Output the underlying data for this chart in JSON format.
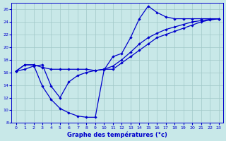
{
  "xlabel": "Graphe des températures (°c)",
  "xlim": [
    -0.5,
    23.5
  ],
  "ylim": [
    8,
    27
  ],
  "xticks": [
    0,
    1,
    2,
    3,
    4,
    5,
    6,
    7,
    8,
    9,
    10,
    11,
    12,
    13,
    14,
    15,
    16,
    17,
    18,
    19,
    20,
    21,
    22,
    23
  ],
  "yticks": [
    8,
    10,
    12,
    14,
    16,
    18,
    20,
    22,
    24,
    26
  ],
  "bg_color": "#c8e8e8",
  "line_color": "#0000cc",
  "grid_color": "#a0c8c8",
  "line1_x": [
    0,
    1,
    2,
    3,
    4,
    5,
    6,
    7,
    8,
    9,
    10,
    11,
    12,
    13,
    14,
    15,
    16,
    17,
    18,
    19,
    20,
    21,
    22,
    23
  ],
  "line1_y": [
    16.2,
    17.2,
    17.2,
    13.8,
    11.7,
    10.3,
    9.6,
    9.1,
    8.9,
    8.9,
    16.4,
    18.5,
    19.0,
    21.5,
    24.5,
    26.5,
    25.5,
    24.8,
    24.5,
    24.5,
    24.5,
    24.5,
    24.5,
    24.5
  ],
  "line2_x": [
    0,
    1,
    2,
    3,
    4,
    5,
    6,
    7,
    8,
    9,
    10,
    11,
    12,
    13,
    14,
    15,
    16,
    17,
    18,
    19,
    20,
    21,
    22,
    23
  ],
  "line2_y": [
    16.2,
    17.2,
    17.2,
    16.8,
    16.5,
    16.5,
    16.5,
    16.5,
    16.5,
    16.3,
    16.5,
    16.5,
    17.5,
    18.5,
    19.5,
    20.5,
    21.5,
    22.0,
    22.5,
    23.0,
    23.5,
    24.0,
    24.3,
    24.5
  ],
  "line3_x": [
    0,
    1,
    2,
    3,
    4,
    5,
    6,
    7,
    8,
    9,
    10,
    11,
    12,
    13,
    14,
    15,
    16,
    17,
    18,
    19,
    20,
    21,
    22,
    23
  ],
  "line3_y": [
    16.2,
    16.5,
    17.0,
    17.2,
    13.8,
    12.0,
    14.5,
    15.5,
    16.0,
    16.3,
    16.5,
    17.0,
    18.0,
    19.2,
    20.5,
    21.5,
    22.2,
    22.8,
    23.2,
    23.6,
    24.0,
    24.2,
    24.4,
    24.5
  ]
}
